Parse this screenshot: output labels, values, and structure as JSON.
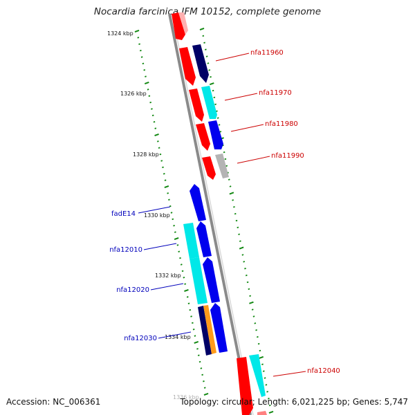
{
  "title": "Nocardia farcinica IFM 10152, complete genome",
  "accession": "Accession: NC_006361",
  "topology": "Topology: circular; Length: 6,021,225 bp; Genes: 5,747",
  "colors": {
    "backbone": "#8a8a8a",
    "tick": "#118811",
    "label_plus": "#cc0000",
    "label_minus": "#0000bb",
    "red": "#ff0000",
    "cyan": "#00e8e8",
    "blue": "#0000ee",
    "navy": "#000066",
    "gray": "#b4b4b4",
    "orange": "#ff9a1a"
  },
  "scale_ticks": [
    "1324 kbp",
    "1326 kbp",
    "1328 kbp",
    "1330 kbp",
    "1332 kbp",
    "1334 kbp",
    "1336 kbp"
  ],
  "gene_labels_plus": [
    "nfa11960",
    "nfa11970",
    "nfa11980",
    "nfa11990",
    "nfa12040"
  ],
  "gene_labels_minus": [
    "fadE14",
    "nfa12010",
    "nfa12020",
    "nfa12030"
  ]
}
